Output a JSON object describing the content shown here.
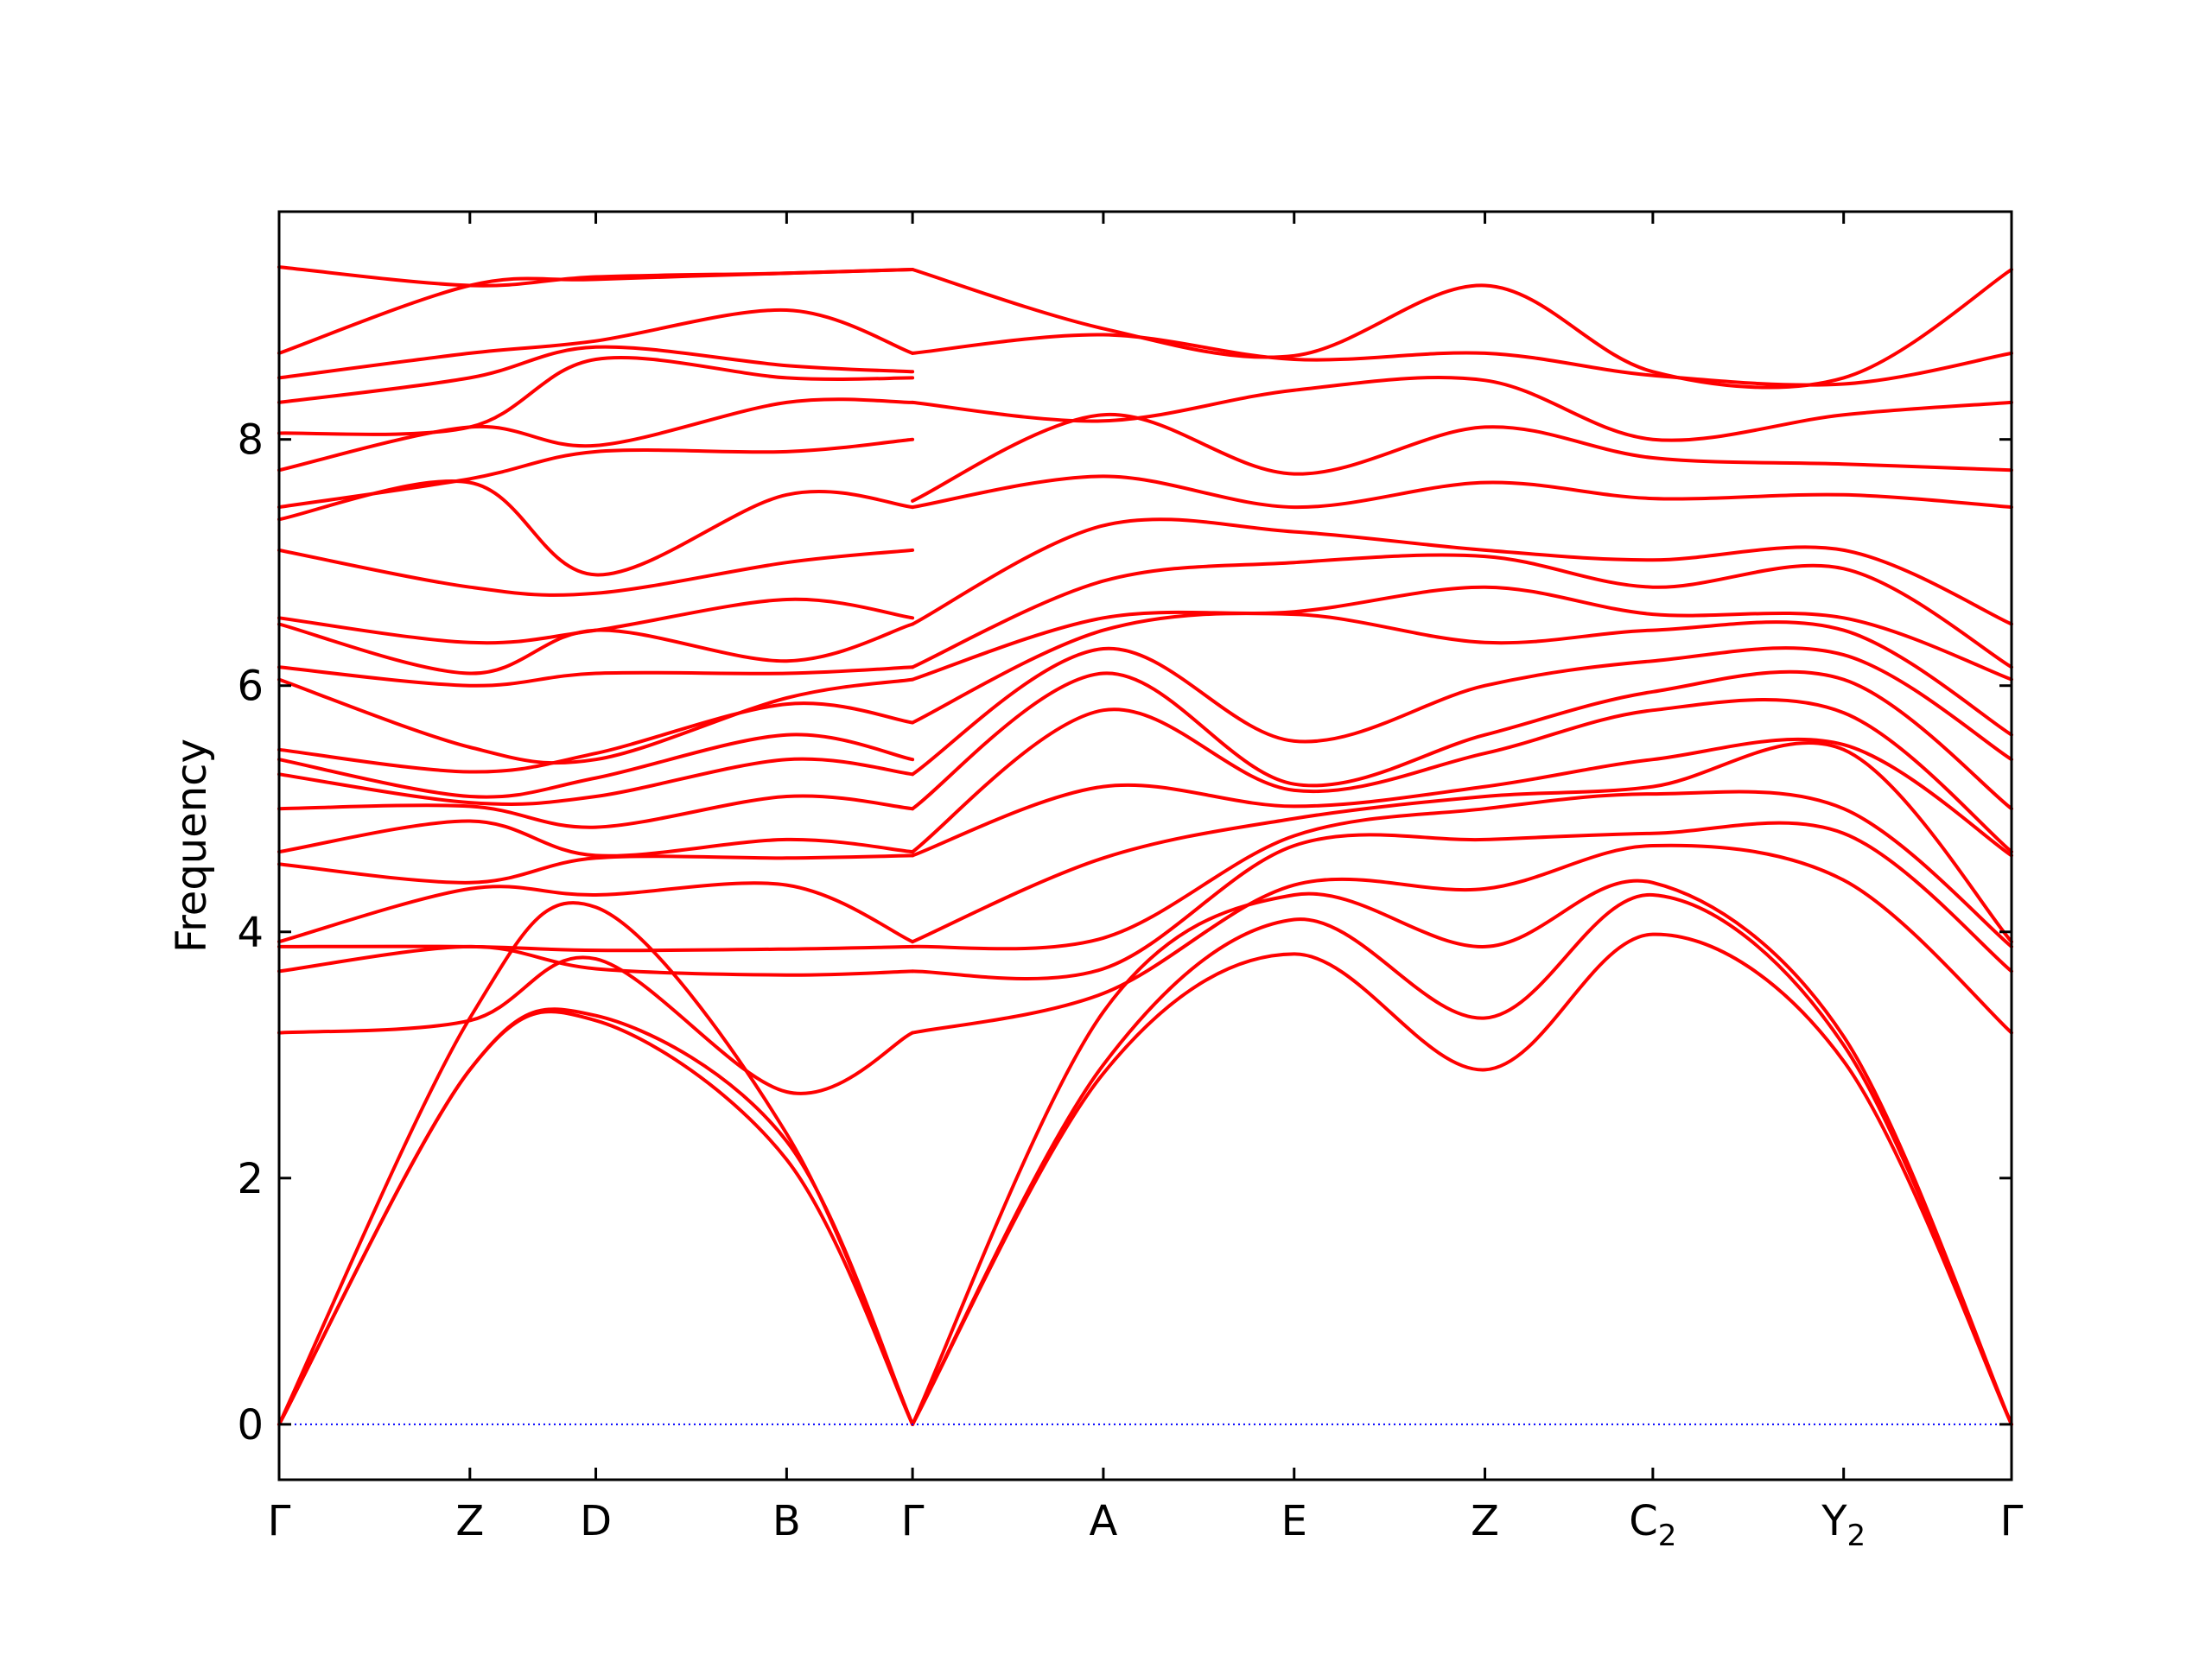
{
  "chart_data": {
    "type": "line",
    "title": "",
    "xlabel": "",
    "ylabel": "Frequency",
    "ylim": [
      -0.45,
      9.85
    ],
    "xlim": [
      0,
      9.08
    ],
    "y_ticks": [
      0,
      2,
      4,
      6,
      8
    ],
    "y_tick_labels": [
      "0",
      "2",
      "4",
      "6",
      "8"
    ],
    "x_ticks": [
      {
        "pos": 0.0,
        "label": "Γ",
        "sub": ""
      },
      {
        "pos": 1.0,
        "label": "Z",
        "sub": ""
      },
      {
        "pos": 1.66,
        "label": "D",
        "sub": ""
      },
      {
        "pos": 2.66,
        "label": "B",
        "sub": ""
      },
      {
        "pos": 3.32,
        "label": "Γ",
        "sub": ""
      },
      {
        "pos": 4.32,
        "label": "A",
        "sub": ""
      },
      {
        "pos": 5.32,
        "label": "E",
        "sub": ""
      },
      {
        "pos": 6.32,
        "label": "Z",
        "sub": ""
      },
      {
        "pos": 7.2,
        "label": "C",
        "sub": "2"
      },
      {
        "pos": 8.2,
        "label": "Y",
        "sub": "2"
      },
      {
        "pos": 9.08,
        "label": "Γ",
        "sub": ""
      }
    ],
    "grid": false,
    "legend": "none",
    "band_color": "#ff0000",
    "zero_line_color": "#0000ff",
    "zero_line_y": 0,
    "series": [
      {
        "x": [
          0,
          1.0,
          1.66,
          2.66,
          3.32
        ],
        "y": [
          0,
          2.88,
          3.28,
          2.15,
          0
        ]
      },
      {
        "x": [
          0,
          1.0,
          1.66,
          2.66,
          3.32
        ],
        "y": [
          0,
          2.88,
          3.32,
          2.3,
          0
        ]
      },
      {
        "x": [
          0,
          1.0,
          1.66,
          2.66,
          3.32
        ],
        "y": [
          0,
          3.3,
          4.2,
          2.36,
          0
        ]
      },
      {
        "x": [
          0,
          1.0,
          1.66,
          2.66,
          3.32
        ],
        "y": [
          3.18,
          3.28,
          3.78,
          2.7,
          3.18
        ]
      },
      {
        "x": [
          0,
          1.0,
          1.66,
          2.66,
          3.32
        ],
        "y": [
          3.68,
          3.88,
          3.7,
          3.65,
          3.68
        ]
      },
      {
        "x": [
          0,
          1.0,
          1.66,
          2.66,
          3.32
        ],
        "y": [
          3.88,
          3.88,
          3.85,
          3.86,
          3.88
        ]
      },
      {
        "x": [
          0,
          1.0,
          1.66,
          2.66,
          3.32
        ],
        "y": [
          3.92,
          4.35,
          4.3,
          4.38,
          3.92
        ]
      },
      {
        "x": [
          0,
          1.0,
          1.66,
          2.66,
          3.32
        ],
        "y": [
          4.55,
          4.4,
          4.6,
          4.6,
          4.62
        ]
      },
      {
        "x": [
          0,
          1.0,
          1.66,
          2.66,
          3.32
        ],
        "y": [
          4.65,
          4.9,
          4.62,
          4.75,
          4.65
        ]
      },
      {
        "x": [
          0,
          1.0,
          1.66,
          2.66,
          3.32
        ],
        "y": [
          5.0,
          5.02,
          4.85,
          5.1,
          5.0
        ]
      },
      {
        "x": [
          0,
          1.0,
          1.66,
          2.66,
          3.32
        ],
        "y": [
          5.28,
          5.05,
          5.1,
          5.4,
          5.28
        ]
      },
      {
        "x": [
          0,
          1.0,
          1.66,
          2.66,
          3.32
        ],
        "y": [
          5.4,
          5.1,
          5.25,
          5.6,
          5.4
        ]
      },
      {
        "x": [
          0,
          1.0,
          1.66,
          2.66,
          3.32
        ],
        "y": [
          5.48,
          5.3,
          5.45,
          5.85,
          5.7
        ]
      },
      {
        "x": [
          0,
          1.0,
          1.66,
          2.66,
          3.32
        ],
        "y": [
          6.05,
          5.5,
          5.4,
          5.9,
          6.05
        ]
      },
      {
        "x": [
          0,
          1.0,
          1.66,
          2.66,
          3.32
        ],
        "y": [
          6.15,
          6.0,
          6.1,
          6.1,
          6.15
        ]
      },
      {
        "x": [
          0,
          1.0,
          1.66,
          2.66,
          3.32
        ],
        "y": [
          6.5,
          6.1,
          6.45,
          6.2,
          6.5
        ]
      },
      {
        "x": [
          0,
          1.0,
          1.66,
          2.66,
          3.32
        ],
        "y": [
          6.55,
          6.35,
          6.45,
          6.7,
          6.55
        ]
      },
      {
        "x": [
          0,
          1.0,
          1.66,
          2.66,
          3.32
        ],
        "y": [
          7.1,
          6.8,
          6.75,
          7.0,
          7.1
        ]
      },
      {
        "x": [
          0,
          1.0,
          1.66,
          2.66,
          3.32
        ],
        "y": [
          7.35,
          7.65,
          6.9,
          7.55,
          7.45
        ]
      },
      {
        "x": [
          0,
          1.0,
          1.66,
          2.66,
          3.32
        ],
        "y": [
          7.45,
          7.68,
          7.9,
          7.9,
          8.0
        ]
      },
      {
        "x": [
          0,
          1.0,
          1.66,
          2.66,
          3.32
        ],
        "y": [
          7.75,
          8.1,
          7.95,
          8.3,
          8.3
        ]
      },
      {
        "x": [
          0,
          1.0,
          1.66,
          2.66,
          3.32
        ],
        "y": [
          8.05,
          8.1,
          8.65,
          8.5,
          8.5
        ]
      },
      {
        "x": [
          0,
          1.0,
          1.66,
          2.66,
          3.32
        ],
        "y": [
          8.3,
          8.5,
          8.75,
          8.6,
          8.55
        ]
      },
      {
        "x": [
          0,
          1.0,
          1.66,
          2.66,
          3.32
        ],
        "y": [
          8.5,
          8.7,
          8.8,
          9.05,
          8.7
        ]
      },
      {
        "x": [
          0,
          1.0,
          1.66,
          2.66,
          3.32
        ],
        "y": [
          8.7,
          9.25,
          9.3,
          9.35,
          9.38
        ]
      },
      {
        "x": [
          0,
          1.0,
          1.66,
          2.66,
          3.32
        ],
        "y": [
          9.4,
          9.25,
          9.32,
          9.35,
          9.38
        ]
      },
      {
        "x": [
          3.32,
          4.32,
          5.32,
          6.32,
          7.2,
          8.2,
          9.08
        ],
        "y": [
          0,
          2.85,
          3.82,
          2.88,
          3.98,
          2.95,
          0
        ]
      },
      {
        "x": [
          3.32,
          4.32,
          5.32,
          6.32,
          7.2,
          8.2,
          9.08
        ],
        "y": [
          0,
          2.92,
          4.1,
          3.3,
          4.3,
          3.08,
          0
        ]
      },
      {
        "x": [
          3.32,
          4.32,
          5.32,
          6.32,
          7.2,
          8.2,
          9.08
        ],
        "y": [
          0,
          3.35,
          4.3,
          3.88,
          4.4,
          3.15,
          0
        ]
      },
      {
        "x": [
          3.32,
          4.32,
          5.32,
          6.32,
          7.2,
          8.2,
          9.08
        ],
        "y": [
          3.18,
          3.5,
          4.38,
          4.35,
          4.7,
          4.42,
          3.18
        ]
      },
      {
        "x": [
          3.32,
          4.32,
          5.32,
          6.32,
          7.2,
          8.2,
          9.08
        ],
        "y": [
          3.68,
          3.7,
          4.7,
          4.75,
          4.8,
          4.8,
          3.68
        ]
      },
      {
        "x": [
          3.32,
          4.32,
          5.32,
          6.32,
          7.2,
          8.2,
          9.08
        ],
        "y": [
          3.88,
          3.95,
          4.78,
          5.0,
          5.12,
          5.0,
          3.88
        ]
      },
      {
        "x": [
          3.32,
          4.32,
          5.32,
          6.32,
          7.2,
          8.2,
          9.08
        ],
        "y": [
          3.92,
          4.6,
          4.92,
          5.1,
          5.18,
          5.48,
          3.92
        ]
      },
      {
        "x": [
          3.32,
          4.32,
          5.32,
          6.32,
          7.2,
          8.2,
          9.08
        ],
        "y": [
          4.62,
          5.18,
          5.02,
          5.18,
          5.4,
          5.52,
          4.62
        ]
      },
      {
        "x": [
          3.32,
          4.32,
          5.32,
          6.32,
          7.2,
          8.2,
          9.08
        ],
        "y": [
          4.65,
          5.8,
          5.15,
          5.45,
          5.8,
          5.78,
          4.65
        ]
      },
      {
        "x": [
          3.32,
          4.32,
          5.32,
          6.32,
          7.2,
          8.2,
          9.08
        ],
        "y": [
          5.0,
          6.1,
          5.2,
          5.6,
          5.95,
          6.05,
          5.0
        ]
      },
      {
        "x": [
          3.32,
          4.32,
          5.32,
          6.32,
          7.2,
          8.2,
          9.08
        ],
        "y": [
          5.28,
          6.3,
          5.55,
          6.0,
          6.2,
          6.25,
          5.4
        ]
      },
      {
        "x": [
          3.32,
          4.32,
          5.32,
          6.32,
          7.2,
          8.2,
          9.08
        ],
        "y": [
          5.7,
          6.45,
          6.58,
          6.35,
          6.45,
          6.45,
          5.6
        ]
      },
      {
        "x": [
          3.32,
          4.32,
          5.32,
          6.32,
          7.2,
          8.2,
          9.08
        ],
        "y": [
          6.05,
          6.55,
          6.6,
          6.8,
          6.58,
          6.55,
          6.05
        ]
      },
      {
        "x": [
          3.32,
          4.32,
          5.32,
          6.32,
          7.2,
          8.2,
          9.08
        ],
        "y": [
          6.15,
          6.85,
          7.0,
          7.05,
          6.8,
          6.95,
          6.15
        ]
      },
      {
        "x": [
          3.32,
          4.32,
          5.32,
          6.32,
          7.2,
          8.2,
          9.08
        ],
        "y": [
          6.5,
          7.3,
          7.25,
          7.1,
          7.02,
          7.1,
          6.5
        ]
      },
      {
        "x": [
          3.32,
          4.32,
          5.32,
          6.32,
          7.2,
          8.2,
          9.08
        ],
        "y": [
          7.45,
          7.7,
          7.45,
          7.65,
          7.52,
          7.55,
          7.45
        ]
      },
      {
        "x": [
          3.32,
          4.32,
          5.32,
          6.32,
          7.2,
          8.2,
          9.08
        ],
        "y": [
          7.5,
          8.2,
          7.72,
          8.1,
          7.85,
          7.8,
          7.75
        ]
      },
      {
        "x": [
          3.32,
          4.32,
          5.32,
          6.32,
          7.2,
          8.2,
          9.08
        ],
        "y": [
          8.3,
          8.15,
          8.4,
          8.48,
          8.0,
          8.2,
          8.3
        ]
      },
      {
        "x": [
          3.32,
          4.32,
          5.32,
          6.32,
          7.2,
          8.2,
          9.08
        ],
        "y": [
          8.7,
          8.85,
          8.65,
          8.7,
          8.52,
          8.45,
          8.7
        ]
      },
      {
        "x": [
          3.32,
          4.32,
          5.32,
          6.32,
          7.2,
          8.2,
          9.08
        ],
        "y": [
          9.38,
          8.9,
          8.68,
          9.25,
          8.55,
          8.5,
          9.38
        ]
      }
    ]
  }
}
